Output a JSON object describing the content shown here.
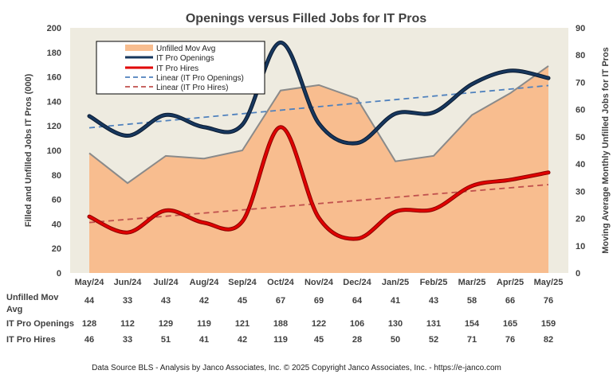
{
  "chart_data": {
    "type": "combo",
    "title": "Openings versus Filled Jobs for IT Pros",
    "categories": [
      "May/24",
      "Jun/24",
      "Jul/24",
      "Aug/24",
      "Sep/24",
      "Oct/24",
      "Nov/24",
      "Dec/24",
      "Jan/25",
      "Feb/25",
      "Mar/25",
      "Apr/25",
      "May/25"
    ],
    "series": [
      {
        "name": "Unfilled Mov Avg",
        "type": "area",
        "axis": "right",
        "color": "#f8bd8f",
        "values": [
          44,
          33,
          43,
          42,
          45,
          67,
          69,
          64,
          41,
          43,
          58,
          66,
          76
        ]
      },
      {
        "name": "IT Pro Openings",
        "type": "line",
        "axis": "left",
        "color": "#17375e",
        "values": [
          128,
          112,
          129,
          119,
          121,
          188,
          122,
          106,
          130,
          131,
          154,
          165,
          159
        ]
      },
      {
        "name": "IT Pro Hires",
        "type": "line",
        "axis": "left",
        "color": "#e00000",
        "values": [
          46,
          33,
          51,
          41,
          42,
          119,
          45,
          28,
          50,
          52,
          71,
          76,
          82
        ]
      },
      {
        "name": "Linear (IT Pro Openings)",
        "type": "trend",
        "axis": "left",
        "color": "#4f81bd",
        "of": "IT Pro Openings"
      },
      {
        "name": "Linear (IT Pro Hires)",
        "type": "trend",
        "axis": "left",
        "color": "#c0504d",
        "of": "IT Pro Hires"
      }
    ],
    "ylabel_left": "Filled and Unfilled Jobs IT Pros (000)",
    "ylabel_right": "Moving Average Monthly Unfilled Jobs for IT Pros",
    "ylim_left": [
      0,
      200
    ],
    "yticks_left": [
      "0",
      "20",
      "40",
      "60",
      "80",
      "100",
      "120",
      "140",
      "160",
      "180",
      "200"
    ],
    "ylim_right": [
      0,
      90
    ],
    "yticks_right": [
      "0",
      "10",
      "20",
      "30",
      "40",
      "50",
      "60",
      "70",
      "80",
      "90"
    ],
    "table": {
      "row_labels": [
        [
          "Unfilled Mov",
          "Avg"
        ],
        [
          "IT Pro Openings"
        ],
        [
          "IT Pro Hires"
        ]
      ],
      "rows": [
        [
          "44",
          "33",
          "43",
          "42",
          "45",
          "67",
          "69",
          "64",
          "41",
          "43",
          "58",
          "66",
          "76"
        ],
        [
          "128",
          "112",
          "129",
          "119",
          "121",
          "188",
          "122",
          "106",
          "130",
          "131",
          "154",
          "165",
          "159"
        ],
        [
          "46",
          "33",
          "51",
          "41",
          "42",
          "119",
          "45",
          "28",
          "50",
          "52",
          "71",
          "76",
          "82"
        ]
      ]
    },
    "legend_position": "top-left",
    "grid": false
  },
  "source_note": "Data Source BLS - Analysis by Janco Associates, Inc. © 2025 Copyright Janco Associates, Inc. - https://e-janco.com"
}
